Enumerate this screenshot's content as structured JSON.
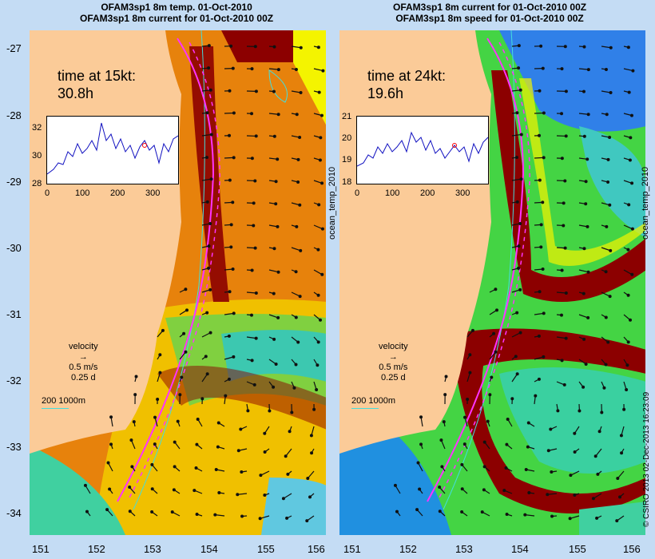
{
  "left_panel": {
    "title_line1": "OFAM3sp1 8m temp. 01-Oct-2010",
    "title_line2": "OFAM3sp1 8m current for 01-Oct-2010 00Z",
    "time_label": "time at 15kt:",
    "time_value": "30.8h",
    "inset": {
      "y_ticks": [
        "32",
        "30",
        "28"
      ],
      "x_ticks": [
        "0",
        "100",
        "200",
        "300"
      ]
    },
    "colorbar_label": "ocean_temp_2010"
  },
  "right_panel": {
    "title_line1": "OFAM3sp1 8m current for 01-Oct-2010 00Z",
    "title_line2": "OFAM3sp1 8m speed for 01-Oct-2010 00Z",
    "time_label": "time at 24kt:",
    "time_value": "19.6h",
    "inset": {
      "y_ticks": [
        "21",
        "20",
        "19",
        "18"
      ],
      "x_ticks": [
        "0",
        "100",
        "200",
        "300"
      ]
    },
    "colorbar_label": "ocean_temp_2010"
  },
  "legend": {
    "velocity_label": "velocity",
    "speed_label": "0.5 m/s",
    "time_label": "0.25 d",
    "depth_label": "200  1000m"
  },
  "axes": {
    "lat_ticks": [
      "-27",
      "-28",
      "-29",
      "-30",
      "-31",
      "-32",
      "-33",
      "-34"
    ],
    "lon_ticks": [
      "151",
      "152",
      "153",
      "154",
      "155",
      "156"
    ]
  },
  "credit": "© CSIRO 2013   02-Dec-2013 16:23:09",
  "colors": {
    "land": "#fbcb98",
    "warm_dark": "#8c0000",
    "warm": "#e7700c",
    "mid": "#f4f400",
    "green": "#44d444",
    "cyan": "#22d4c4",
    "blue": "#1f78e6",
    "track": "#ff33ff",
    "isobath": "#44dddd"
  }
}
